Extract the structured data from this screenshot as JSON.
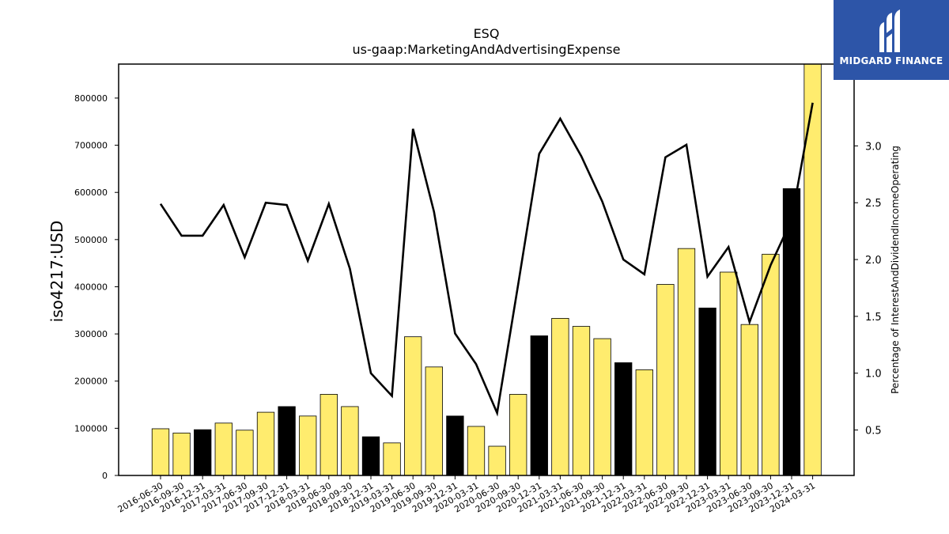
{
  "logo": {
    "text": "MIDGARD FINANCE",
    "icon": "midgard-logo-icon"
  },
  "chart_data": {
    "type": "bar",
    "title": "ESQ",
    "subtitle": "us-gaap:MarketingAndAdvertisingExpense",
    "ylabel": "iso4217:USD",
    "y2label": "Percentage of InterestAndDividendIncomeOperating",
    "ylim": [
      0,
      872000
    ],
    "y2lim": [
      0.1,
      3.72
    ],
    "yticks": [
      0,
      100000,
      200000,
      300000,
      400000,
      500000,
      600000,
      700000,
      800000
    ],
    "y2ticks": [
      0.5,
      1.0,
      1.5,
      2.0,
      2.5,
      3.0
    ],
    "categories": [
      "2016-06-30",
      "2016-09-30",
      "2016-12-31",
      "2017-03-31",
      "2017-06-30",
      "2017-09-30",
      "2017-12-31",
      "2018-03-31",
      "2018-06-30",
      "2018-09-30",
      "2018-12-31",
      "2019-03-31",
      "2019-06-30",
      "2019-09-30",
      "2019-12-31",
      "2020-03-31",
      "2020-06-30",
      "2020-09-30",
      "2020-12-31",
      "2021-03-31",
      "2021-06-30",
      "2021-09-30",
      "2021-12-31",
      "2022-03-31",
      "2022-06-30",
      "2022-09-30",
      "2022-12-31",
      "2023-03-31",
      "2023-06-30",
      "2023-09-30",
      "2023-12-31",
      "2024-03-31"
    ],
    "values": [
      99000,
      90000,
      97000,
      111000,
      96000,
      134000,
      146000,
      126000,
      172000,
      146000,
      82000,
      69000,
      294000,
      230000,
      126000,
      104000,
      62000,
      172000,
      296000,
      333000,
      316000,
      290000,
      239000,
      224000,
      405000,
      481000,
      355000,
      431000,
      320000,
      469000,
      608000,
      885000
    ],
    "bar_colors": [
      "#ffec6e",
      "#ffec6e",
      "#000000",
      "#ffec6e",
      "#ffec6e",
      "#ffec6e",
      "#000000",
      "#ffec6e",
      "#ffec6e",
      "#ffec6e",
      "#000000",
      "#ffec6e",
      "#ffec6e",
      "#ffec6e",
      "#000000",
      "#ffec6e",
      "#ffec6e",
      "#ffec6e",
      "#000000",
      "#ffec6e",
      "#ffec6e",
      "#ffec6e",
      "#000000",
      "#ffec6e",
      "#ffec6e",
      "#ffec6e",
      "#000000",
      "#ffec6e",
      "#ffec6e",
      "#ffec6e",
      "#000000",
      "#ffec6e"
    ],
    "line_values": [
      2.49,
      2.21,
      2.21,
      2.48,
      2.02,
      2.5,
      2.48,
      1.99,
      2.49,
      1.92,
      1.0,
      0.8,
      3.15,
      2.42,
      1.35,
      1.08,
      0.65,
      1.78,
      2.93,
      3.24,
      2.91,
      2.51,
      2.0,
      1.87,
      2.9,
      3.01,
      1.85,
      2.11,
      1.45,
      1.95,
      2.35,
      3.38
    ],
    "colors": {
      "bar_primary": "#ffec6e",
      "bar_secondary": "#000000",
      "line": "#000000"
    },
    "grid": false,
    "legend": "none"
  }
}
